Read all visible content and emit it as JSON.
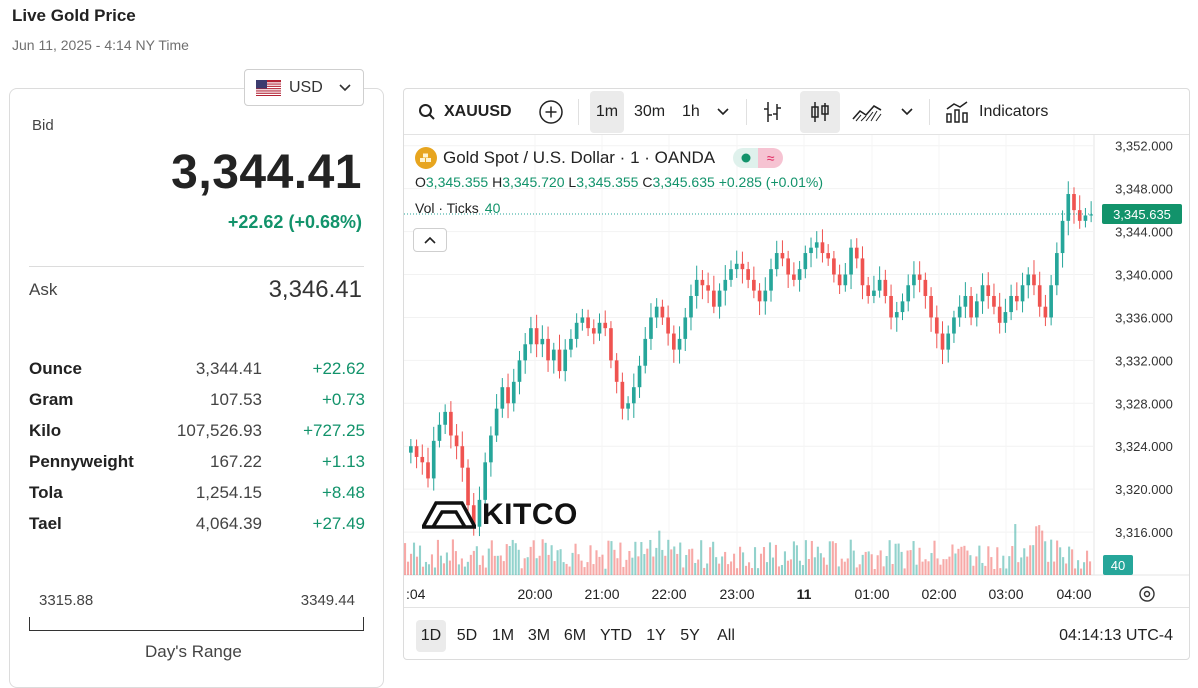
{
  "header": {
    "title": "Live Gold Price",
    "subtitle": "Jun 11, 2025 - 4:14 NY Time"
  },
  "currency_selector": {
    "value": "USD",
    "flag_icon": "us-flag-icon"
  },
  "quote": {
    "bid_label": "Bid",
    "bid_value": "3,344.41",
    "bid_change": "+22.62 (+0.68%)",
    "ask_label": "Ask",
    "ask_value": "3,346.41"
  },
  "units": [
    {
      "unit": "Ounce",
      "price": "3,344.41",
      "change": "+22.62"
    },
    {
      "unit": "Gram",
      "price": "107.53",
      "change": "+0.73"
    },
    {
      "unit": "Kilo",
      "price": "107,526.93",
      "change": "+727.25"
    },
    {
      "unit": "Pennyweight",
      "price": "167.22",
      "change": "+1.13"
    },
    {
      "unit": "Tola",
      "price": "1,254.15",
      "change": "+8.48"
    },
    {
      "unit": "Tael",
      "price": "4,064.39",
      "change": "+27.49"
    }
  ],
  "days_range": {
    "low": "3315.88",
    "high": "3349.44",
    "caption": "Day's Range"
  },
  "chart_toolbar": {
    "symbol": "XAUUSD",
    "intervals": [
      "1m",
      "30m",
      "1h"
    ],
    "active_interval": "1m",
    "indicators_label": "Indicators"
  },
  "chart_legend": {
    "title": "Gold Spot / U.S. Dollar · 1 · OANDA",
    "ohlc": {
      "o_key": "O",
      "o": "3,345.355",
      "h_key": "H",
      "h": "3,345.720",
      "l_key": "L",
      "l": "3,345.355",
      "c_key": "C",
      "c": "3,345.635",
      "chg": "+0.285 (+0.01%)"
    },
    "volume_label": "Vol · Ticks",
    "volume_value": "40",
    "toggle_symbol": "≈"
  },
  "watermark": "KITCO",
  "range_buttons": [
    "1D",
    "5D",
    "1M",
    "3M",
    "6M",
    "YTD",
    "1Y",
    "5Y",
    "All"
  ],
  "active_range": "1D",
  "clock": "04:14:13 UTC-4",
  "colors": {
    "up": "#26a69a",
    "down": "#ef5350",
    "accent_green": "#12936b",
    "price_tag": "#12936b"
  },
  "chart_data": {
    "type": "line",
    "title": "Gold Spot / U.S. Dollar · 1 · OANDA",
    "y_ticks": [
      "3,352.000",
      "3,348.000",
      "3,344.000",
      "3,340.000",
      "3,336.000",
      "3,332.000",
      "3,328.000",
      "3,324.000",
      "3,320.000",
      "3,316.000"
    ],
    "ylim": [
      3312,
      3353
    ],
    "x_ticks": [
      ":04",
      "20:00",
      "21:00",
      "22:00",
      "23:00",
      "11",
      "01:00",
      "02:00",
      "03:00",
      "04:00"
    ],
    "last_price": "3,345.635",
    "last_volume": "40",
    "series": [
      {
        "values": [
          3324.0,
          3323.0,
          3322.5,
          3321.0,
          3324.5,
          3326.0,
          3327.2,
          3325.0,
          3324.0,
          3322.0,
          3318.5,
          3316.5,
          3319.0,
          3322.5,
          3325.0,
          3327.5,
          3329.5,
          3328.0,
          3330.0,
          3332.0,
          3333.5,
          3335.0,
          3333.5,
          3334.0,
          3332.0,
          3333.0,
          3331.0,
          3333.0,
          3334.0,
          3335.5,
          3336.0,
          3335.0,
          3334.5,
          3335.5,
          3335.0,
          3332.0,
          3330.0,
          3327.5,
          3328.0,
          3329.5,
          3331.5,
          3334.0,
          3336.0,
          3337.0,
          3336.0,
          3334.5,
          3333.0,
          3334.0,
          3336.0,
          3338.0,
          3339.5,
          3339.0,
          3338.5,
          3337.0,
          3338.5,
          3339.5,
          3340.5,
          3341.0,
          3340.5,
          3339.5,
          3338.5,
          3337.5,
          3338.5,
          3340.5,
          3342.0,
          3341.5,
          3340.0,
          3339.5,
          3340.5,
          3342.0,
          3342.5,
          3343.0,
          3342.0,
          3341.5,
          3340.0,
          3339.0,
          3340.0,
          3342.5,
          3341.5,
          3339.0,
          3338.0,
          3338.5,
          3339.5,
          3338.0,
          3336.0,
          3336.5,
          3337.5,
          3339.0,
          3340.0,
          3339.5,
          3338.0,
          3336.0,
          3334.5,
          3333.0,
          3334.5,
          3336.0,
          3337.0,
          3338.0,
          3336.0,
          3337.5,
          3339.0,
          3338.0,
          3337.0,
          3335.5,
          3336.5,
          3338.0,
          3337.5,
          3339.0,
          3340.0,
          3339.0,
          3337.0,
          3336.0,
          3339.0,
          3342.0,
          3345.0,
          3347.5,
          3346.0,
          3345.0,
          3345.5,
          3345.6
        ]
      }
    ]
  }
}
